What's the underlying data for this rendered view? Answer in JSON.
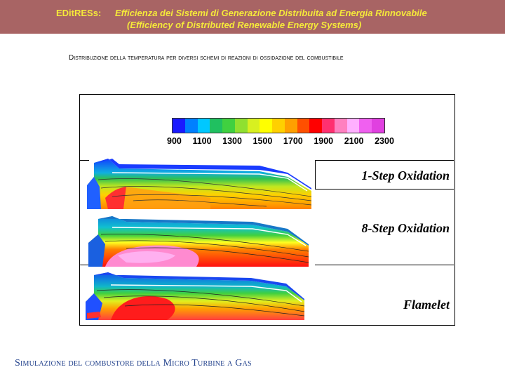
{
  "header": {
    "project_tag": "EDitRESs:",
    "title_line1": "Efficienza dei Sistemi di Generazione Distribuita ad Energia Rinnovabile",
    "title_line2": "(Efficiency of Distributed Renewable Energy Systems)"
  },
  "subtitle": "Distribuzione della temperatura per diversi schemi di reazioni di ossidazione del combustibile",
  "colorbar": {
    "ticks": [
      "900",
      "1100",
      "1300",
      "1500",
      "1700",
      "1900",
      "2100",
      "2300"
    ],
    "colors": [
      "#1a1aff",
      "#0080ff",
      "#00c8ff",
      "#20c060",
      "#40d040",
      "#90e030",
      "#d8f020",
      "#ffff00",
      "#ffd000",
      "#ffa000",
      "#ff5000",
      "#ff0000",
      "#ff3070",
      "#ff80c0",
      "#ffb0ff",
      "#f060f0",
      "#e040e0"
    ]
  },
  "panels": [
    {
      "label": "1-Step Oxidation"
    },
    {
      "label": "8-Step Oxidation"
    },
    {
      "label": "Flamelet"
    }
  ],
  "footer": "Simulazione del combustore della Micro Turbine a Gas"
}
